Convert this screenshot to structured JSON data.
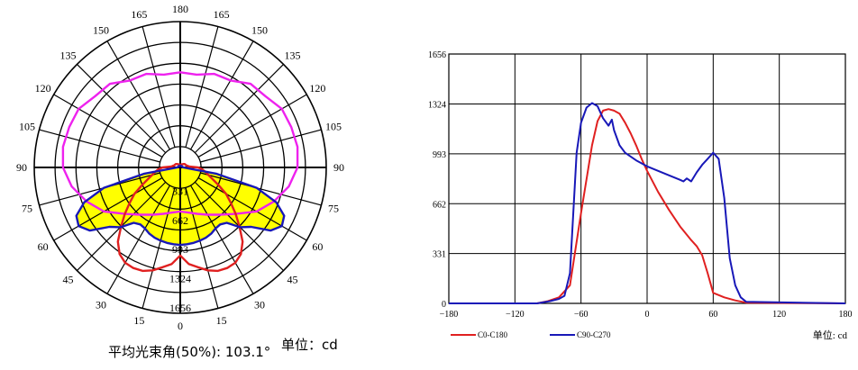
{
  "chart_data": [
    {
      "type": "polar",
      "angle_ticks": [
        "180",
        "165",
        "165",
        "150",
        "150",
        "135",
        "135",
        "120",
        "120",
        "105",
        "105",
        "90",
        "90",
        "75",
        "75",
        "60",
        "60",
        "45",
        "45",
        "30",
        "30",
        "15",
        "15",
        "0"
      ],
      "radial_ticks": [
        "331",
        "662",
        "993",
        "1324",
        "1656"
      ],
      "rmax": 1656,
      "series": [
        {
          "color": "#e02020",
          "angles": [
            0,
            5,
            10,
            15,
            20,
            25,
            30,
            35,
            40,
            45,
            50,
            55,
            60,
            65,
            70,
            75,
            80,
            85,
            90,
            95,
            100,
            105,
            110,
            115,
            120,
            125,
            130,
            135,
            140,
            145,
            150,
            155,
            160,
            165,
            170,
            175,
            180
          ],
          "values": [
            1000,
            1100,
            1150,
            1210,
            1250,
            1260,
            1250,
            1200,
            1100,
            950,
            820,
            700,
            600,
            480,
            390,
            330,
            290,
            250,
            200,
            110,
            90,
            80,
            70,
            70,
            65,
            65,
            60,
            55,
            50,
            45,
            40,
            38,
            36,
            34,
            33,
            32,
            30
          ]
        },
        {
          "color": "#1818b8",
          "fill": "#ffff00",
          "angles": [
            0,
            5,
            10,
            15,
            20,
            25,
            30,
            35,
            40,
            45,
            50,
            55,
            60,
            65,
            70,
            75,
            80,
            85,
            90,
            95,
            100,
            105,
            110,
            115,
            120,
            125,
            130,
            135,
            140,
            145,
            150,
            155,
            160,
            165,
            170,
            175,
            180
          ],
          "values": [
            880,
            875,
            870,
            860,
            850,
            830,
            800,
            790,
            820,
            960,
            1050,
            1250,
            1330,
            1300,
            1160,
            900,
            420,
            60,
            35,
            30,
            28,
            26,
            25,
            25,
            24,
            24,
            23,
            22,
            22,
            21,
            21,
            20,
            20,
            20,
            20,
            20,
            20
          ]
        },
        {
          "color": "#ee22ee",
          "angles": [
            0,
            10,
            20,
            30,
            40,
            50,
            60,
            70,
            80,
            90,
            100,
            110,
            120,
            130,
            140,
            150,
            160,
            170,
            180
          ],
          "values": [
            500,
            520,
            560,
            620,
            700,
            820,
            1000,
            1130,
            1250,
            1330,
            1350,
            1340,
            1330,
            1260,
            1240,
            1140,
            1130,
            1070,
            1080
          ]
        }
      ],
      "beam_angle_label": "平均光束角(50%): 103.1°",
      "unit_label": "单位：cd"
    },
    {
      "type": "line",
      "x_ticks": [
        "−180",
        "−120",
        "−60",
        "0",
        "60",
        "120",
        "180"
      ],
      "y_ticks": [
        "0",
        "331",
        "662",
        "993",
        "1324",
        "1656"
      ],
      "xlim": [
        -180,
        180
      ],
      "ylim": [
        0,
        1656
      ],
      "series": [
        {
          "name": "C0-C180",
          "color": "#e02020",
          "x": [
            -180,
            -100,
            -90,
            -80,
            -70,
            -60,
            -50,
            -45,
            -40,
            -35,
            -30,
            -25,
            -20,
            -15,
            -10,
            -5,
            0,
            10,
            20,
            30,
            40,
            45,
            50,
            55,
            60,
            70,
            80,
            90,
            180
          ],
          "y": [
            0,
            0,
            15,
            40,
            120,
            600,
            1050,
            1210,
            1280,
            1290,
            1280,
            1260,
            1200,
            1130,
            1050,
            960,
            880,
            740,
            620,
            510,
            420,
            380,
            320,
            200,
            70,
            40,
            20,
            5,
            0
          ]
        },
        {
          "name": "C90-C270",
          "color": "#1818b8",
          "x": [
            -180,
            -100,
            -88,
            -80,
            -75,
            -70,
            -67,
            -64,
            -60,
            -55,
            -50,
            -45,
            -40,
            -35,
            -32,
            -30,
            -25,
            -20,
            -10,
            0,
            10,
            20,
            30,
            33,
            36,
            40,
            45,
            50,
            55,
            60,
            65,
            70,
            75,
            80,
            85,
            90,
            180
          ],
          "y": [
            0,
            0,
            15,
            30,
            50,
            200,
            600,
            1000,
            1200,
            1300,
            1330,
            1310,
            1230,
            1180,
            1220,
            1150,
            1050,
            1000,
            950,
            910,
            880,
            850,
            820,
            810,
            830,
            810,
            870,
            920,
            960,
            1000,
            960,
            700,
            300,
            120,
            40,
            10,
            0
          ]
        }
      ],
      "unit_label": "单位: cd"
    }
  ]
}
